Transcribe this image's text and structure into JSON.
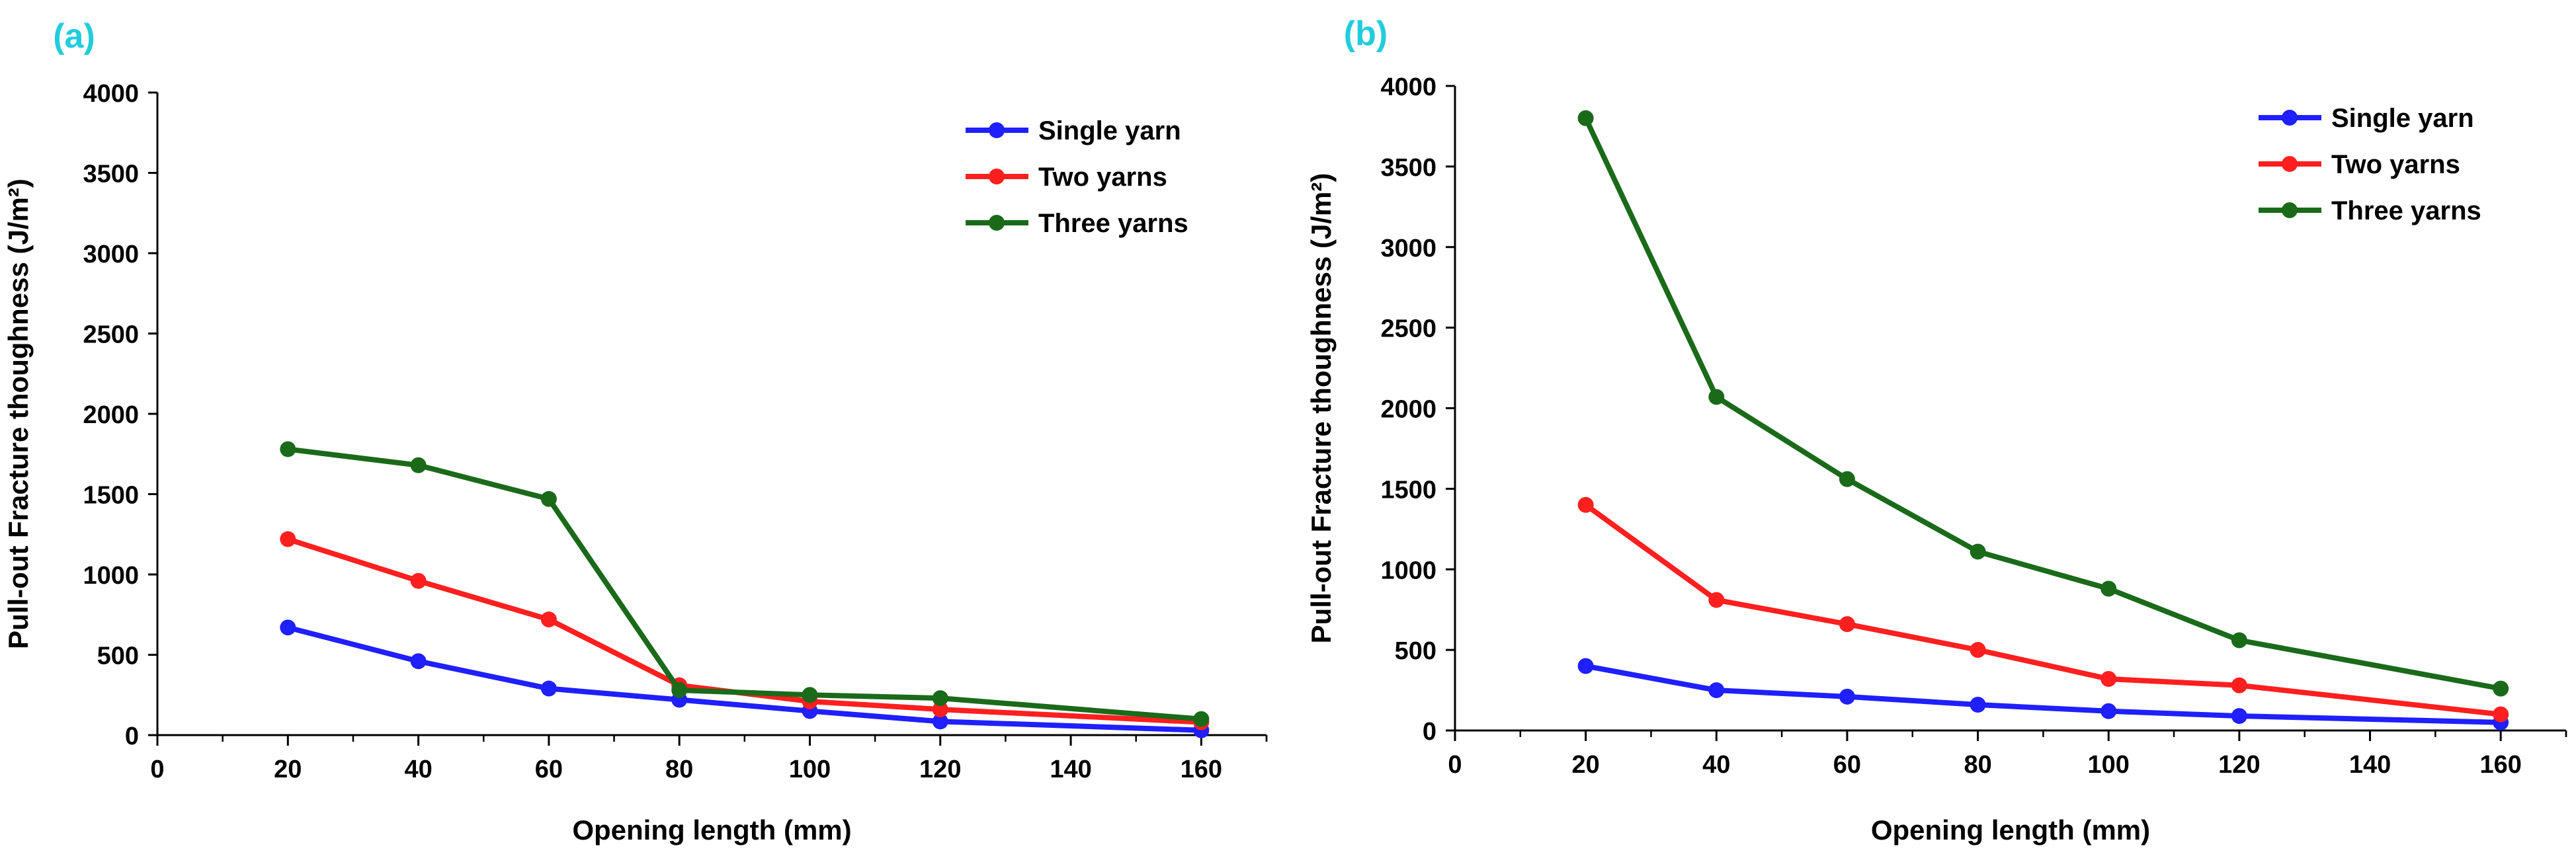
{
  "chart_data": [
    {
      "type": "line",
      "panel_label": "(a)",
      "xlabel": "Opening length (mm)",
      "ylabel": "Pull-out Fracture thoughness  (J/m²)",
      "xlim": [
        0,
        170
      ],
      "ylim": [
        0,
        4000
      ],
      "xticks": [
        0,
        20,
        40,
        60,
        80,
        100,
        120,
        140,
        160
      ],
      "yticks": [
        0,
        500,
        1000,
        1500,
        2000,
        2500,
        3000,
        3500,
        4000
      ],
      "x": [
        20,
        40,
        60,
        80,
        100,
        120,
        160
      ],
      "legend_position": "top-right",
      "series": [
        {
          "name": "Single yarn",
          "color": "#1f1fff",
          "values": [
            670,
            460,
            290,
            220,
            150,
            85,
            30
          ]
        },
        {
          "name": "Two yarns",
          "color": "#ff1f1f",
          "values": [
            1220,
            960,
            720,
            310,
            210,
            160,
            80
          ]
        },
        {
          "name": "Three yarns",
          "color": "#1a6a1a",
          "values": [
            1780,
            1680,
            1470,
            280,
            250,
            230,
            100
          ]
        }
      ]
    },
    {
      "type": "line",
      "panel_label": "(b)",
      "xlabel": "Opening length (mm)",
      "ylabel": "Pull-out Fracture thoughness  (J/m²)",
      "xlim": [
        0,
        170
      ],
      "ylim": [
        0,
        4000
      ],
      "xticks": [
        0,
        20,
        40,
        60,
        80,
        100,
        120,
        140,
        160
      ],
      "yticks": [
        0,
        500,
        1000,
        1500,
        2000,
        2500,
        3000,
        3500,
        4000
      ],
      "x": [
        20,
        40,
        60,
        80,
        100,
        120,
        160
      ],
      "legend_position": "top-right",
      "series": [
        {
          "name": "Single yarn",
          "color": "#1f1fff",
          "values": [
            400,
            250,
            210,
            160,
            120,
            90,
            50
          ]
        },
        {
          "name": "Two yarns",
          "color": "#ff1f1f",
          "values": [
            1400,
            810,
            660,
            500,
            320,
            280,
            100
          ]
        },
        {
          "name": "Three yarns",
          "color": "#1a6a1a",
          "values": [
            3800,
            2070,
            1560,
            1110,
            880,
            560,
            260
          ]
        }
      ]
    }
  ]
}
